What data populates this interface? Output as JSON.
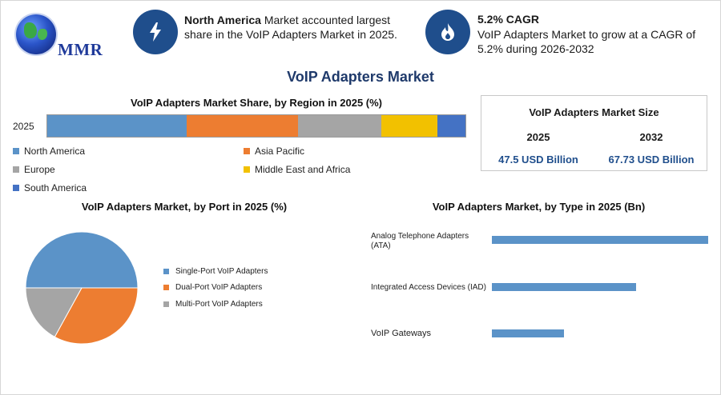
{
  "brand": {
    "logo_text": "MMR"
  },
  "header": {
    "fact1": {
      "bold": "North America",
      "text": " Market accounted largest share in the VoIP Adapters Market in 2025."
    },
    "fact2": {
      "title": "5.2% CAGR",
      "text": "VoIP Adapters Market to grow at a CAGR of 5.2% during 2026-2032"
    },
    "icon1": "lightning-bolt-icon",
    "icon2": "flame-drop-icon"
  },
  "main_title": "VoIP Adapters Market",
  "size_box": {
    "title": "VoIP Adapters Market Size",
    "years": [
      "2025",
      "2032"
    ],
    "values": [
      "47.5 USD Billion",
      "67.73 USD Billion"
    ]
  },
  "colors": {
    "north_america": "#5b93c8",
    "asia_pacific": "#ed7d31",
    "europe": "#a5a5a5",
    "middle_east_africa": "#f2c100",
    "south_america": "#4472c4",
    "header_icon": "#1f4e8c"
  },
  "chart_data": [
    {
      "type": "bar",
      "orientation": "horizontal-stacked",
      "title": "VoIP Adapters Market Share, by Region in 2025 (%)",
      "categories": [
        "2025"
      ],
      "series": [
        {
          "name": "North America",
          "values": [
            33.3
          ]
        },
        {
          "name": "Asia Pacific",
          "values": [
            26.7
          ]
        },
        {
          "name": "Europe",
          "values": [
            19.8
          ]
        },
        {
          "name": "Middle East and Africa",
          "values": [
            13.5
          ]
        },
        {
          "name": "South America",
          "values": [
            6.7
          ]
        }
      ],
      "legend_position": "bottom"
    },
    {
      "type": "pie",
      "title": "VoIP Adapters Market, by Port in 2025 (%)",
      "labels": [
        "Single-Port VoIP Adapters",
        "Dual-Port VoIP Adapters",
        "Multi-Port VoIP Adapters"
      ],
      "values": [
        50,
        33,
        17
      ],
      "legend_position": "right"
    },
    {
      "type": "bar",
      "orientation": "horizontal",
      "title": "VoIP Adapters Market, by Type in 2025 (Bn)",
      "categories": [
        "Analog Telephone Adapters (ATA)",
        "Integrated Access Devices (IAD)",
        "VoIP Gateways"
      ],
      "values": [
        30,
        20,
        10
      ],
      "axis": false
    }
  ]
}
